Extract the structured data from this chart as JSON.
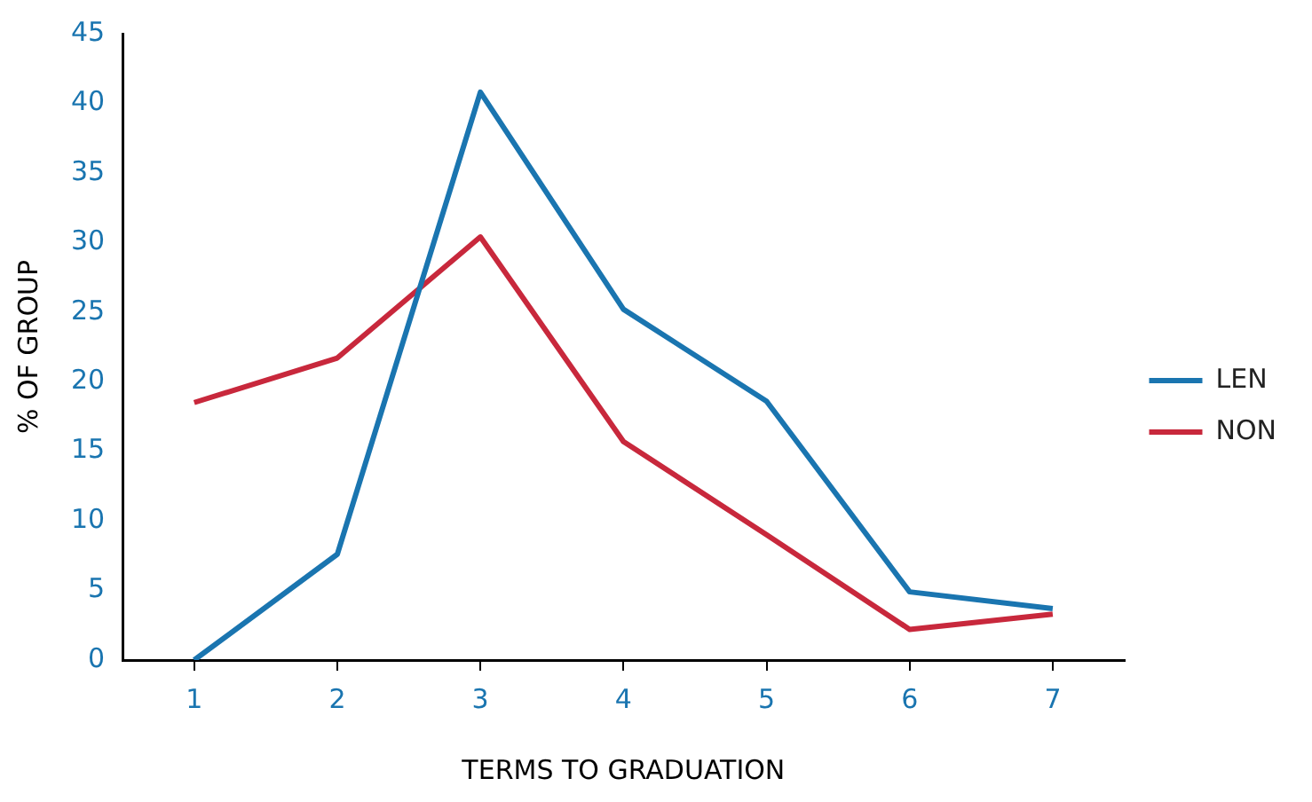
{
  "chart_data": {
    "type": "line",
    "xlabel": "TERMS TO GRADUATION",
    "ylabel": "% OF GROUP",
    "categories": [
      "1",
      "2",
      "3",
      "4",
      "5",
      "6",
      "7"
    ],
    "series": [
      {
        "name": "LEN",
        "color": "#1a75b0",
        "values": [
          0,
          7.6,
          40.8,
          25.2,
          18.6,
          4.9,
          3.7
        ]
      },
      {
        "name": "NON",
        "color": "#c8283c",
        "values": [
          18.5,
          21.7,
          30.4,
          15.7,
          9,
          2.2,
          3.3
        ]
      }
    ],
    "ylim": [
      0,
      45
    ],
    "yticks": [
      0,
      5,
      10,
      15,
      20,
      25,
      30,
      35,
      40,
      45
    ],
    "grid": false,
    "legend": "right",
    "marker": "none",
    "line_style": "solid"
  }
}
